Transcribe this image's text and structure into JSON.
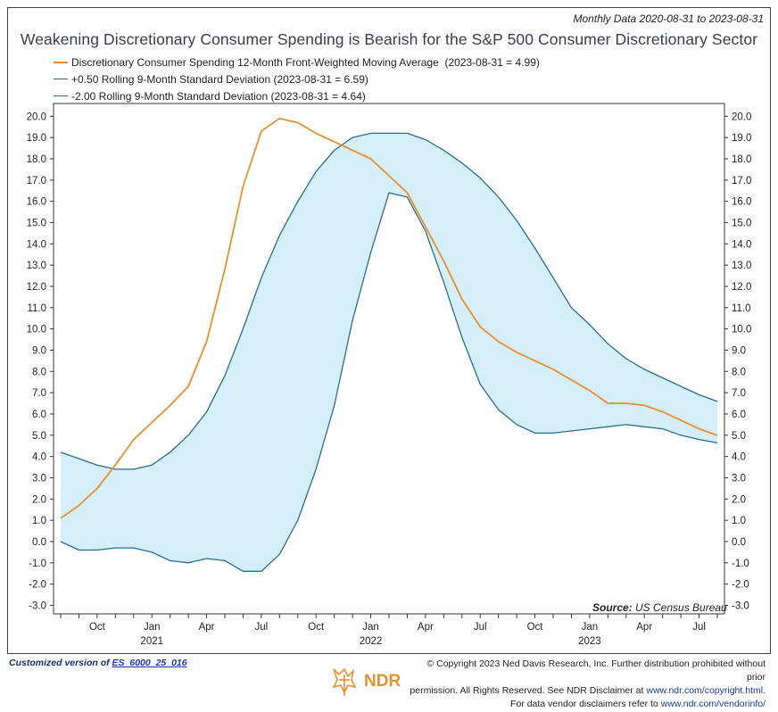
{
  "header": {
    "date_range": "Monthly Data 2020-08-31 to 2023-08-31",
    "title": "Weakening Discretionary Consumer Spending is Bearish for the S&P 500 Consumer Discretionary Sector"
  },
  "legend": [
    {
      "label": "Discretionary Consumer Spending 12-Month Front-Weighted Moving Average",
      "value": "(2023-08-31 = 4.99)",
      "color": "#e8902c"
    },
    {
      "label": "+0.50 Rolling 9-Month Standard Deviation",
      "value": "(2023-08-31 = 6.59)",
      "color": "#2a6e8c"
    },
    {
      "label": "-2.00 Rolling 9-Month Standard Deviation",
      "value": "(2023-08-31 = 4.64)",
      "color": "#2a6e8c"
    }
  ],
  "source": {
    "label": "Source:",
    "text": "US Census Bureau"
  },
  "chart_data": {
    "type": "line",
    "x": [
      "2020-08",
      "2020-09",
      "2020-10",
      "2020-11",
      "2020-12",
      "2021-01",
      "2021-02",
      "2021-03",
      "2021-04",
      "2021-05",
      "2021-06",
      "2021-07",
      "2021-08",
      "2021-09",
      "2021-10",
      "2021-11",
      "2021-12",
      "2022-01",
      "2022-02",
      "2022-03",
      "2022-04",
      "2022-05",
      "2022-06",
      "2022-07",
      "2022-08",
      "2022-09",
      "2022-10",
      "2022-11",
      "2022-12",
      "2023-01",
      "2023-02",
      "2023-03",
      "2023-04",
      "2023-05",
      "2023-06",
      "2023-07",
      "2023-08"
    ],
    "series": [
      {
        "name": "Discretionary Consumer Spending 12-Month Front-Weighted Moving Average",
        "color": "#e8902c",
        "values": [
          1.1,
          1.7,
          2.5,
          3.6,
          4.8,
          5.6,
          6.4,
          7.3,
          9.4,
          12.8,
          16.7,
          19.3,
          19.9,
          19.7,
          19.2,
          18.8,
          18.4,
          18.0,
          17.2,
          16.4,
          14.8,
          13.2,
          11.4,
          10.1,
          9.4,
          8.9,
          8.5,
          8.1,
          7.6,
          7.1,
          6.5,
          6.5,
          6.4,
          6.1,
          5.7,
          5.3,
          4.99
        ]
      },
      {
        "name": "+0.50 Rolling 9-Month Standard Deviation",
        "color": "#2a6e8c",
        "values": [
          4.2,
          3.9,
          3.6,
          3.4,
          3.4,
          3.6,
          4.2,
          5.0,
          6.1,
          7.8,
          10.0,
          12.4,
          14.4,
          16.0,
          17.4,
          18.4,
          19.0,
          19.2,
          19.2,
          19.2,
          18.9,
          18.4,
          17.8,
          17.1,
          16.2,
          15.1,
          13.8,
          12.4,
          11.0,
          10.2,
          9.3,
          8.6,
          8.1,
          7.7,
          7.3,
          6.9,
          6.59
        ]
      },
      {
        "name": "-2.00 Rolling 9-Month Standard Deviation",
        "color": "#2a6e8c",
        "values": [
          0.0,
          -0.4,
          -0.4,
          -0.3,
          -0.3,
          -0.5,
          -0.9,
          -1.0,
          -0.8,
          -0.9,
          -1.4,
          -1.4,
          -0.6,
          1.0,
          3.4,
          6.4,
          10.4,
          13.6,
          16.4,
          16.2,
          14.6,
          12.2,
          9.6,
          7.4,
          6.2,
          5.5,
          5.1,
          5.1,
          5.2,
          5.3,
          5.4,
          5.5,
          5.4,
          5.3,
          5.0,
          4.8,
          4.64
        ]
      }
    ],
    "band": {
      "between": [
        "+0.50 Rolling 9-Month Standard Deviation",
        "-2.00 Rolling 9-Month Standard Deviation"
      ],
      "color": "#d4eefa"
    },
    "ylim": [
      -3.4,
      20.6
    ],
    "y_ticks": [
      20.0,
      19.0,
      18.0,
      17.0,
      16.0,
      15.0,
      14.0,
      13.0,
      12.0,
      11.0,
      10.0,
      9.0,
      8.0,
      7.0,
      6.0,
      5.0,
      4.0,
      3.0,
      2.0,
      1.0,
      0.0,
      -1.0,
      -2.0,
      -3.0
    ],
    "y_tick_labels": [
      "20.0",
      "19.0",
      "18.0",
      "17.0",
      "16.0",
      "15.0",
      "14.0",
      "13.0",
      "12.0",
      "11.0",
      "10.0",
      "9.0",
      "8.0",
      "7.0",
      "6.0",
      "5.0",
      "4.0",
      "3.0",
      "2.0",
      "1.0",
      "0.0",
      "-1.0",
      "-2.0",
      "-3.0"
    ],
    "x_tick_labels": [
      {
        "label": "Oct",
        "at": "2020-10"
      },
      {
        "label": "Jan",
        "at": "2021-01"
      },
      {
        "label": "Apr",
        "at": "2021-04"
      },
      {
        "label": "Jul",
        "at": "2021-07"
      },
      {
        "label": "Oct",
        "at": "2021-10"
      },
      {
        "label": "Jan",
        "at": "2022-01"
      },
      {
        "label": "Apr",
        "at": "2022-04"
      },
      {
        "label": "Jul",
        "at": "2022-07"
      },
      {
        "label": "Oct",
        "at": "2022-10"
      },
      {
        "label": "Jan",
        "at": "2023-01"
      },
      {
        "label": "Apr",
        "at": "2023-04"
      },
      {
        "label": "Jul",
        "at": "2023-07"
      }
    ],
    "x_year_labels": [
      {
        "label": "2021",
        "at": "2021-01"
      },
      {
        "label": "2022",
        "at": "2022-01"
      },
      {
        "label": "2023",
        "at": "2023-01"
      }
    ]
  },
  "footer": {
    "custom_prefix": "Customized version of",
    "custom_code": "ES_6000_25_016",
    "logo_text": "NDR",
    "copyright_line1": "© Copyright 2023 Ned Davis Research, Inc. Further distribution prohibited without prior",
    "copyright_line2_text": "permission. All Rights Reserved. See NDR Disclaimer at",
    "copyright_line2_link": "www.ndr.com/copyright.html.",
    "copyright_line3_text": "For data vendor disclaimers refer to",
    "copyright_line3_link": "www.ndr.com/vendorinfo/"
  }
}
